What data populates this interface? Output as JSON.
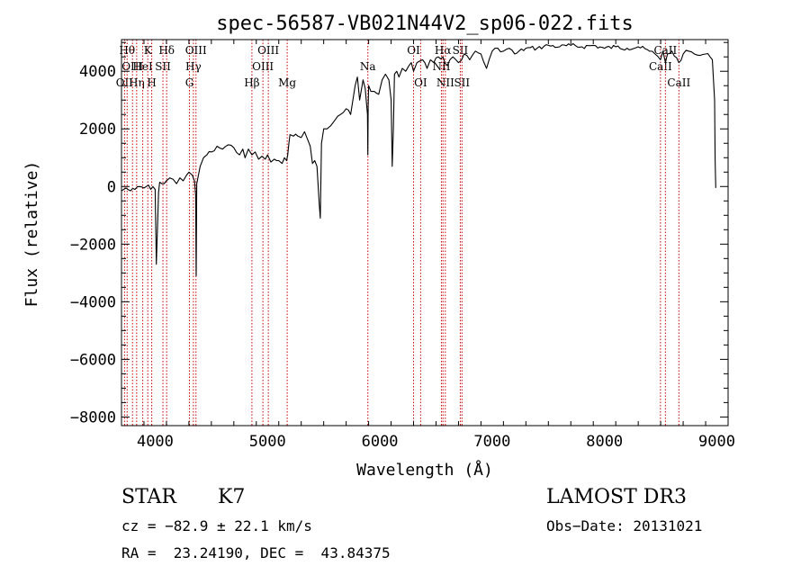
{
  "chart_data": {
    "type": "line",
    "title": "spec-56587-VB021N44V2_sp06-022.fits",
    "xlabel": "Wavelength (Å)",
    "ylabel": "Flux (relative)",
    "xlim": [
      3700,
      9100
    ],
    "ylim": [
      -8300,
      5100
    ],
    "xticks": [
      4000,
      5000,
      6000,
      7000,
      8000,
      9000
    ],
    "yticks": [
      -8000,
      -6000,
      -4000,
      -2000,
      0,
      2000,
      4000
    ],
    "xtick_labels": [
      "4000",
      "5000",
      "6000",
      "7000",
      "8000",
      "9000"
    ],
    "ytick_labels": [
      "−8000",
      "−6000",
      "−4000",
      "−2000",
      "0",
      "2000",
      "4000"
    ],
    "line_color": "#000000",
    "marker_color": "#cc0000",
    "series": [
      {
        "x": [
          3700,
          3740,
          3780,
          3820,
          3860,
          3900,
          3940,
          3960,
          3980,
          4000,
          4010,
          4030,
          4040,
          4060,
          4080,
          4100,
          4130,
          4160,
          4190,
          4220,
          4250,
          4280,
          4300,
          4330,
          4350,
          4360,
          4365,
          4370,
          4375,
          4380,
          4400,
          4430,
          4460,
          4500,
          4550,
          4600,
          4650,
          4700,
          4750,
          4780,
          4800,
          4830,
          4861,
          4890,
          4920,
          4950,
          4980,
          5000,
          5030,
          5060,
          5100,
          5130,
          5150,
          5170,
          5180,
          5190,
          5200,
          5230,
          5270,
          5300,
          5330,
          5360,
          5380,
          5400,
          5420,
          5440,
          5460,
          5470,
          5480,
          5500,
          5530,
          5560,
          5600,
          5650,
          5700,
          5740,
          5760,
          5780,
          5800,
          5820,
          5850,
          5870,
          5890,
          5893,
          5896,
          5900,
          5920,
          5950,
          5990,
          6020,
          6050,
          6080,
          6100,
          6110,
          6120,
          6130,
          6150,
          6170,
          6200,
          6230,
          6260,
          6280,
          6300,
          6330,
          6380,
          6420,
          6450,
          6480,
          6520,
          6562,
          6600,
          6650,
          6700,
          6750,
          6800,
          6850,
          6900,
          6950,
          7000,
          7050,
          7100,
          7150,
          7200,
          7300,
          7400,
          7500,
          7600,
          7700,
          7800,
          7900,
          8000,
          8100,
          8200,
          8300,
          8400,
          8450,
          8498,
          8520,
          8542,
          8560,
          8600,
          8662,
          8700,
          8750,
          8800,
          8850,
          8900,
          8940,
          8960,
          8980,
          8985,
          8990
        ],
        "y": [
          -150,
          -50,
          -150,
          -100,
          0,
          -50,
          50,
          -100,
          0,
          -100,
          -2700,
          -200,
          150,
          100,
          100,
          200,
          300,
          250,
          100,
          300,
          200,
          400,
          500,
          400,
          200,
          -300,
          -3100,
          100,
          200,
          300,
          700,
          1000,
          1100,
          1200,
          1400,
          1300,
          1450,
          1350,
          1100,
          1300,
          1000,
          1300,
          1100,
          1200,
          950,
          1050,
          950,
          1100,
          850,
          950,
          900,
          800,
          1000,
          900,
          1100,
          1500,
          1800,
          1750,
          1750,
          1700,
          1900,
          1600,
          1400,
          800,
          900,
          700,
          -600,
          -1100,
          1500,
          2000,
          2000,
          2100,
          2300,
          2500,
          2700,
          2500,
          3000,
          3500,
          3800,
          3000,
          3700,
          3400,
          2500,
          1100,
          2800,
          3500,
          3300,
          3300,
          3200,
          3700,
          3900,
          3700,
          3000,
          700,
          2000,
          3900,
          4000,
          3800,
          4100,
          4000,
          4200,
          4300,
          4000,
          4300,
          4400,
          4100,
          4400,
          4300,
          4500,
          4500,
          4200,
          4500,
          4300,
          4600,
          4400,
          4700,
          4600,
          4100,
          4700,
          4800,
          4700,
          4800,
          4600,
          4800,
          4800,
          4900,
          4850,
          4900,
          4850,
          4900,
          4800,
          4850,
          4800,
          4850,
          4700,
          4600,
          4400,
          4700,
          4300,
          4600,
          4700,
          4300,
          4600,
          4700,
          4600,
          4550,
          4600,
          4500,
          4400,
          3000,
          900,
          -50
        ]
      }
    ],
    "lines": [
      {
        "w": 3727,
        "label": "OII",
        "row": 2
      },
      {
        "w": 3750,
        "label": "Hθ",
        "row": 0
      },
      {
        "w": 3798,
        "label": "OIII",
        "row": 1
      },
      {
        "w": 3835,
        "label": "Hη",
        "row": 2
      },
      {
        "w": 3889,
        "label": "HeI",
        "row": 1
      },
      {
        "w": 3934,
        "label": "K",
        "row": 0
      },
      {
        "w": 3969,
        "label": "H",
        "row": 2
      },
      {
        "w": 4069,
        "label": "SII",
        "row": 1
      },
      {
        "w": 4102,
        "label": "Hδ",
        "row": 0
      },
      {
        "w": 4305,
        "label": "G",
        "row": 2
      },
      {
        "w": 4340,
        "label": "Hγ",
        "row": 1
      },
      {
        "w": 4363,
        "label": "OIII",
        "row": 0
      },
      {
        "w": 4861,
        "label": "Hβ",
        "row": 2
      },
      {
        "w": 4959,
        "label": "OIII",
        "row": 1
      },
      {
        "w": 5007,
        "label": "OIII",
        "row": 0
      },
      {
        "w": 5175,
        "label": "Mg",
        "row": 2
      },
      {
        "w": 5893,
        "label": "Na",
        "row": 1
      },
      {
        "w": 6300,
        "label": "OI",
        "row": 0
      },
      {
        "w": 6363,
        "label": "OI",
        "row": 2
      },
      {
        "w": 6548,
        "label": "NII",
        "row": 1
      },
      {
        "w": 6562,
        "label": "Hα",
        "row": 0
      },
      {
        "w": 6583,
        "label": "NII",
        "row": 2
      },
      {
        "w": 6716,
        "label": "SII",
        "row": 0
      },
      {
        "w": 6731,
        "label": "SII",
        "row": 2
      },
      {
        "w": 8498,
        "label": "CaII",
        "row": 1
      },
      {
        "w": 8542,
        "label": "CaII",
        "row": 0
      },
      {
        "w": 8662,
        "label": "CaII",
        "row": 2
      }
    ]
  },
  "info": {
    "class": "STAR",
    "subclass": "K7",
    "survey": "LAMOST DR3",
    "cz": "cz = −82.9 ± 22.1 km/s",
    "obs_date": "Obs−Date: 20131021",
    "coords": "RA =  23.24190, DEC =  43.84375"
  }
}
